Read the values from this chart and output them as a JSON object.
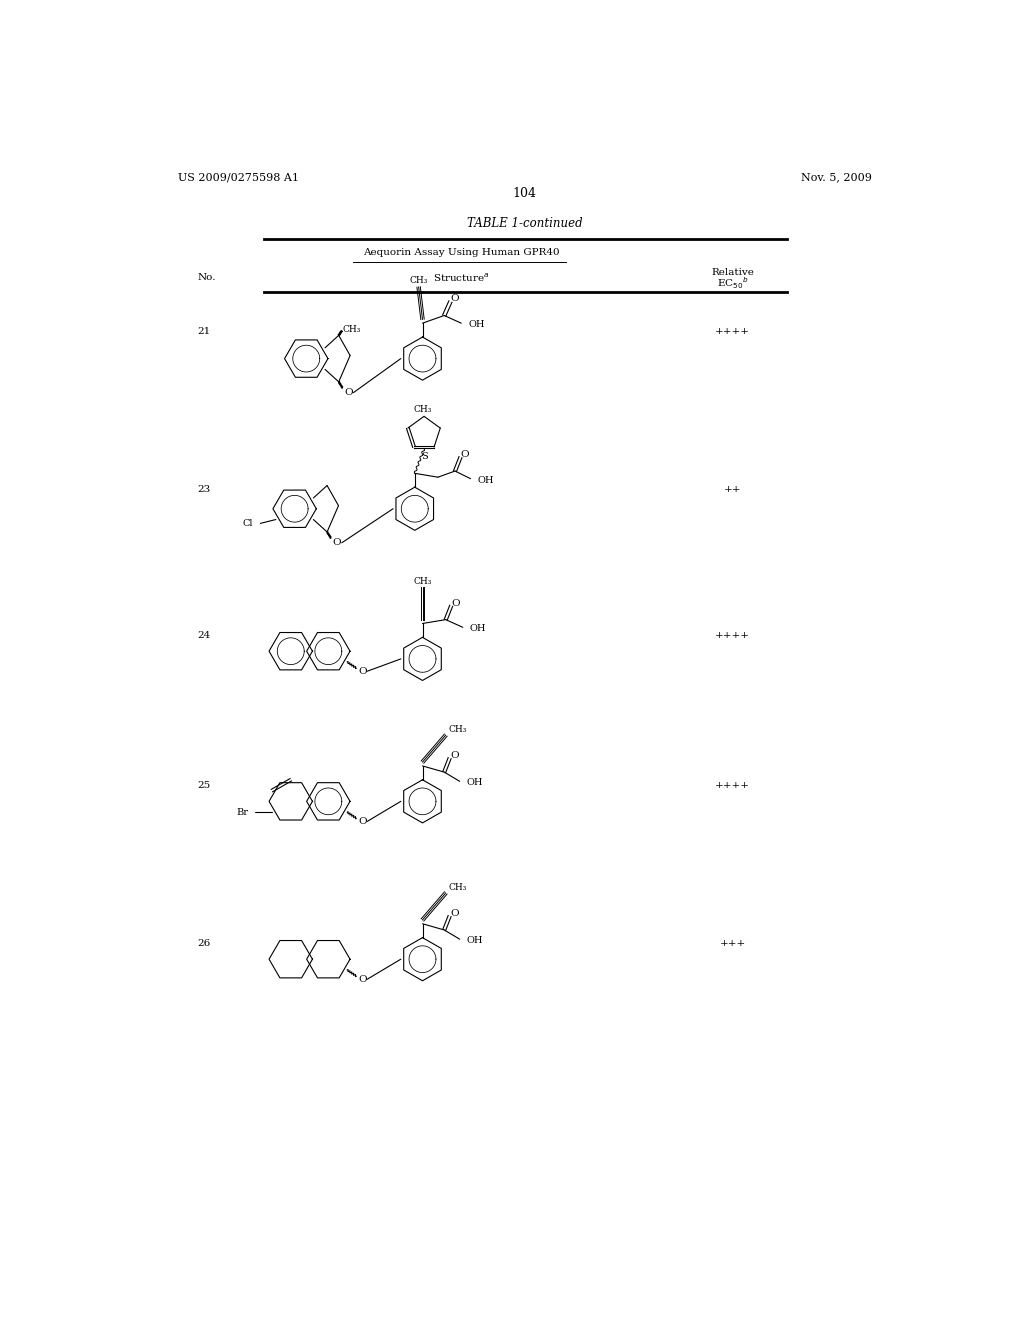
{
  "patent_number": "US 2009/0275598 A1",
  "date": "Nov. 5, 2009",
  "page_number": "104",
  "table_title": "TABLE 1-continued",
  "table_subtitle": "Aequorin Assay Using Human GPR40",
  "rows": [
    {
      "no": "21",
      "ec": "++++"
    },
    {
      "no": "23",
      "ec": "++"
    },
    {
      "no": "24",
      "ec": "++++"
    },
    {
      "no": "25",
      "ec": "++++"
    },
    {
      "no": "26",
      "ec": "+++"
    }
  ],
  "bg_color": "#ffffff",
  "text_color": "#000000"
}
